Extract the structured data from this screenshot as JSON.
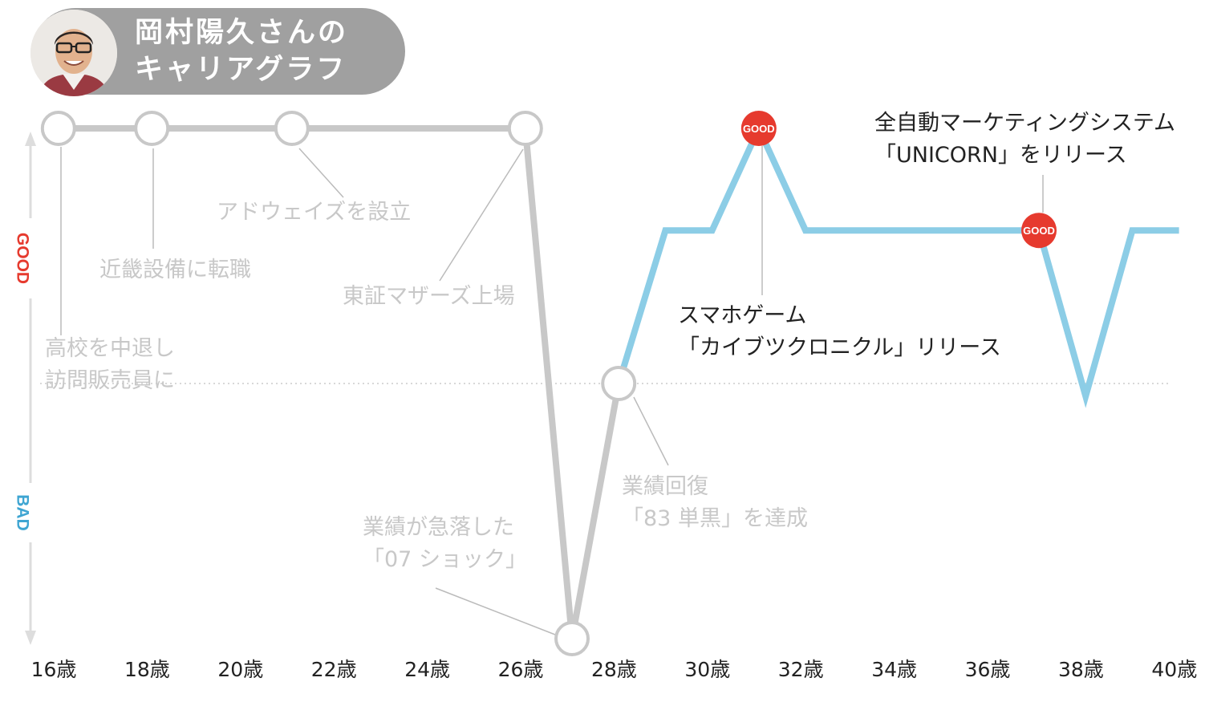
{
  "header": {
    "title_line1": "岡村陽久さんの",
    "title_line2": "キャリアグラフ"
  },
  "chart_data": {
    "type": "line",
    "title": "岡村陽久さんのキャリアグラフ",
    "y_axis": {
      "good_label": "GOOD",
      "bad_label": "BAD",
      "range": [
        -1,
        1
      ],
      "baseline": 0
    },
    "x_axis": {
      "ticks": [
        "16歳",
        "18歳",
        "20歳",
        "22歳",
        "24歳",
        "26歳",
        "28歳",
        "30歳",
        "32歳",
        "34歳",
        "36歳",
        "38歳",
        "40歳"
      ],
      "range": [
        16,
        40
      ]
    },
    "series": [
      {
        "color": "#c8c8c8",
        "points": [
          [
            16.1,
            1.0
          ],
          [
            18.1,
            1.0
          ],
          [
            21.1,
            1.0
          ],
          [
            26.1,
            1.0
          ],
          [
            27.1,
            -1.0
          ],
          [
            28.1,
            0.0
          ]
        ]
      },
      {
        "color": "#8ccde6",
        "points": [
          [
            28.1,
            0.0
          ],
          [
            29.1,
            0.6
          ],
          [
            30.1,
            0.6
          ],
          [
            31.1,
            1.0
          ],
          [
            32.1,
            0.6
          ],
          [
            37.1,
            0.6
          ],
          [
            38.1,
            -0.05
          ],
          [
            39.1,
            0.6
          ],
          [
            40.1,
            0.6
          ]
        ]
      }
    ],
    "markers": [
      {
        "x": 16.1,
        "y": 1.0,
        "style": "circle"
      },
      {
        "x": 18.1,
        "y": 1.0,
        "style": "circle"
      },
      {
        "x": 21.1,
        "y": 1.0,
        "style": "circle"
      },
      {
        "x": 26.1,
        "y": 1.0,
        "style": "circle"
      },
      {
        "x": 27.1,
        "y": -1.0,
        "style": "circle"
      },
      {
        "x": 28.1,
        "y": 0.0,
        "style": "circle"
      },
      {
        "x": 31.1,
        "y": 1.0,
        "style": "good",
        "label": "GOOD",
        "color": "#e63a2e"
      },
      {
        "x": 37.1,
        "y": 0.6,
        "style": "good",
        "label": "GOOD",
        "color": "#e63a2e"
      }
    ],
    "annotations": [
      {
        "lines": [
          "高校を中退し",
          "訪問販売員に"
        ],
        "color": "#c8c8c8"
      },
      {
        "lines": [
          "近畿設備に転職"
        ],
        "color": "#c8c8c8"
      },
      {
        "lines": [
          "アドウェイズを設立"
        ],
        "color": "#c8c8c8"
      },
      {
        "lines": [
          "東証マザーズ上場"
        ],
        "color": "#c8c8c8"
      },
      {
        "lines": [
          "業績が急落した",
          "「07 ショック」"
        ],
        "color": "#c8c8c8"
      },
      {
        "lines": [
          "業績回復",
          "「83 単黒」を達成"
        ],
        "color": "#c8c8c8"
      },
      {
        "lines": [
          "スマホゲーム",
          "「カイブツクロニクル」リリース"
        ],
        "color": "#222222"
      },
      {
        "lines": [
          "全自動マーケティングシステム",
          "「UNICORN」をリリース"
        ],
        "color": "#222222"
      }
    ]
  }
}
